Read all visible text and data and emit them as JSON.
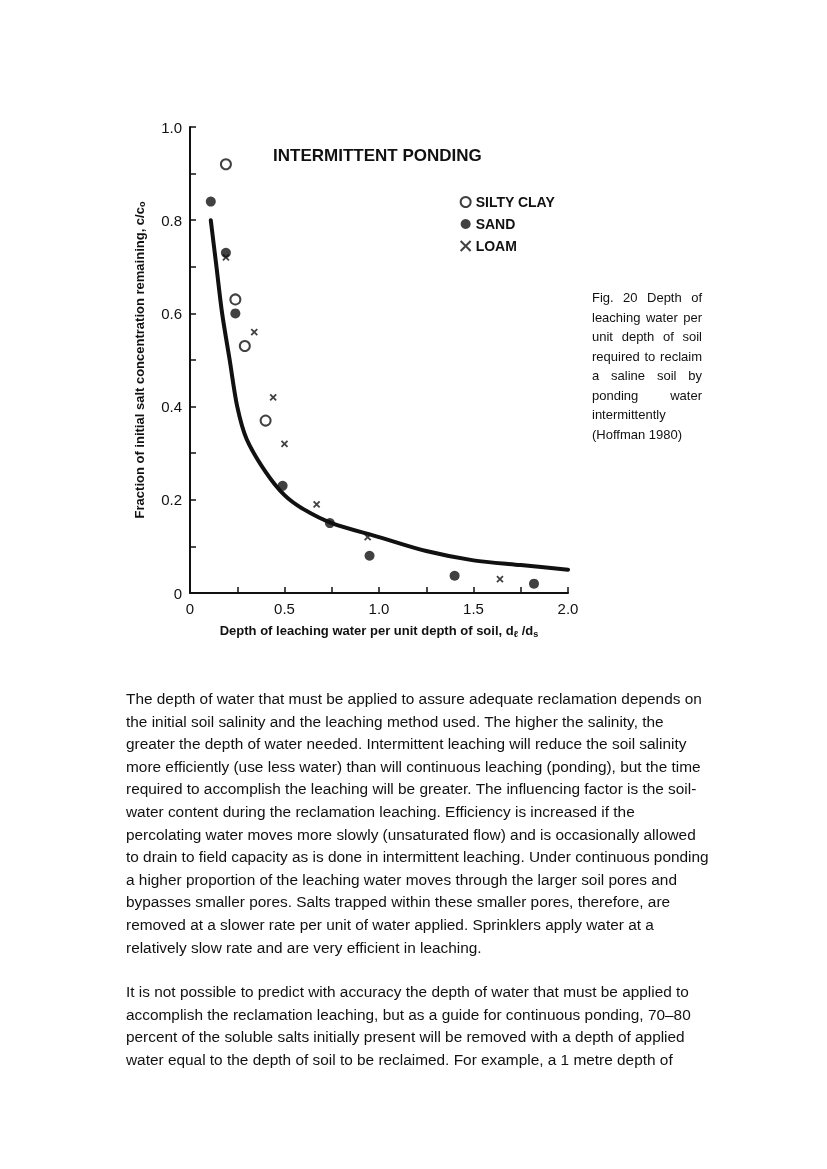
{
  "chart_data": {
    "type": "scatter",
    "title": "INTERMITTENT PONDING",
    "xlabel": "Depth of leaching water per unit depth of soil, d$_{ℓ}$ /d$_{s}$",
    "ylabel": "Fraction of initial salt concentration remaining, c/c$_{o}$",
    "xlim": [
      0,
      2.0
    ],
    "ylim": [
      0,
      1.0
    ],
    "xticks": [
      0,
      {
        "value": 0.25,
        "label": null
      },
      0.5,
      {
        "value": 0.75,
        "label": null
      },
      "1.0",
      {
        "value": 1.25,
        "label": null
      },
      1.5,
      {
        "value": 1.75,
        "label": null
      },
      "2.0"
    ],
    "yticks": [
      0,
      {
        "value": 0.1,
        "label": null
      },
      0.2,
      {
        "value": 0.3,
        "label": null
      },
      0.4,
      {
        "value": 0.5,
        "label": null
      },
      0.6,
      {
        "value": 0.7,
        "label": null
      },
      0.8,
      {
        "value": 0.9,
        "label": null
      },
      "1.0"
    ],
    "grid": false,
    "legend": "top right",
    "series": [
      {
        "name": "SILTY CLAY",
        "color": "#111111",
        "marker": "open circle",
        "x": [
          0.19,
          0.24,
          0.29,
          0.4
        ],
        "values": [
          0.92,
          0.63,
          0.53,
          0.37
        ]
      },
      {
        "name": "SAND",
        "color": "#111111",
        "marker": "circle",
        "x": [
          0.11,
          0.19,
          0.24,
          0.49,
          0.74,
          0.95,
          1.4,
          1.82
        ],
        "values": [
          0.84,
          0.73,
          0.6,
          0.23,
          0.15,
          0.08,
          0.037,
          0.02
        ]
      },
      {
        "name": "LOAM",
        "color": "#111111",
        "marker": "cross",
        "x": [
          0.19,
          0.34,
          0.44,
          0.5,
          0.67,
          0.94,
          1.64
        ],
        "values": [
          0.72,
          0.56,
          0.42,
          0.32,
          0.19,
          0.12,
          0.03
        ]
      },
      {
        "type": "line",
        "color": "#111111",
        "marker": "none",
        "x": [
          0.11,
          0.14,
          0.17,
          0.21,
          0.25,
          0.3,
          0.4,
          0.5,
          0.6,
          0.75,
          1.0,
          1.25,
          1.5,
          1.75,
          2.0
        ],
        "values": [
          0.8,
          0.7,
          0.6,
          0.5,
          0.4,
          0.33,
          0.26,
          0.21,
          0.18,
          0.15,
          0.12,
          0.09,
          0.07,
          0.06,
          0.05
        ]
      }
    ],
    "annotations": [
      "Fig. 20 Depth of leaching water per unit depth of soil required to reclaim a saline soil by ponding water intermittently (Hoffman 1980)",
      "The depth of water that must be applied to assure adequate reclamation depends on the initial soil salinity and the leaching method used. The higher the salinity, the greater the depth of water needed. Intermittent leaching will reduce the soil salinity more efficiently (use less water) than will continuous leaching (ponding), but the time required to accomplish the leaching will be greater. The influencing factor is the soil-water content during the reclamation leaching. Efficiency is increased if the percolating water moves more slowly (unsaturated flow) and is occasionally allowed to drain to field capacity as is done in intermittent leaching. Under continuous ponding a higher proportion of the leaching water moves through the larger soil pores and bypasses smaller pores. Salts trapped within these smaller pores, therefore, are removed at a slower rate per unit of water applied. Sprinklers apply water at a relatively slow rate and are very efficient in leaching.",
      "It is not possible to predict with accuracy the depth of water that must be applied to accomplish the reclamation leaching, but as a guide for continuous ponding, 70–80 percent of the soluble salts initially present will be removed with a depth of applied water equal to the depth of soil to be reclaimed. For example, a 1 metre depth of"
    ]
  }
}
